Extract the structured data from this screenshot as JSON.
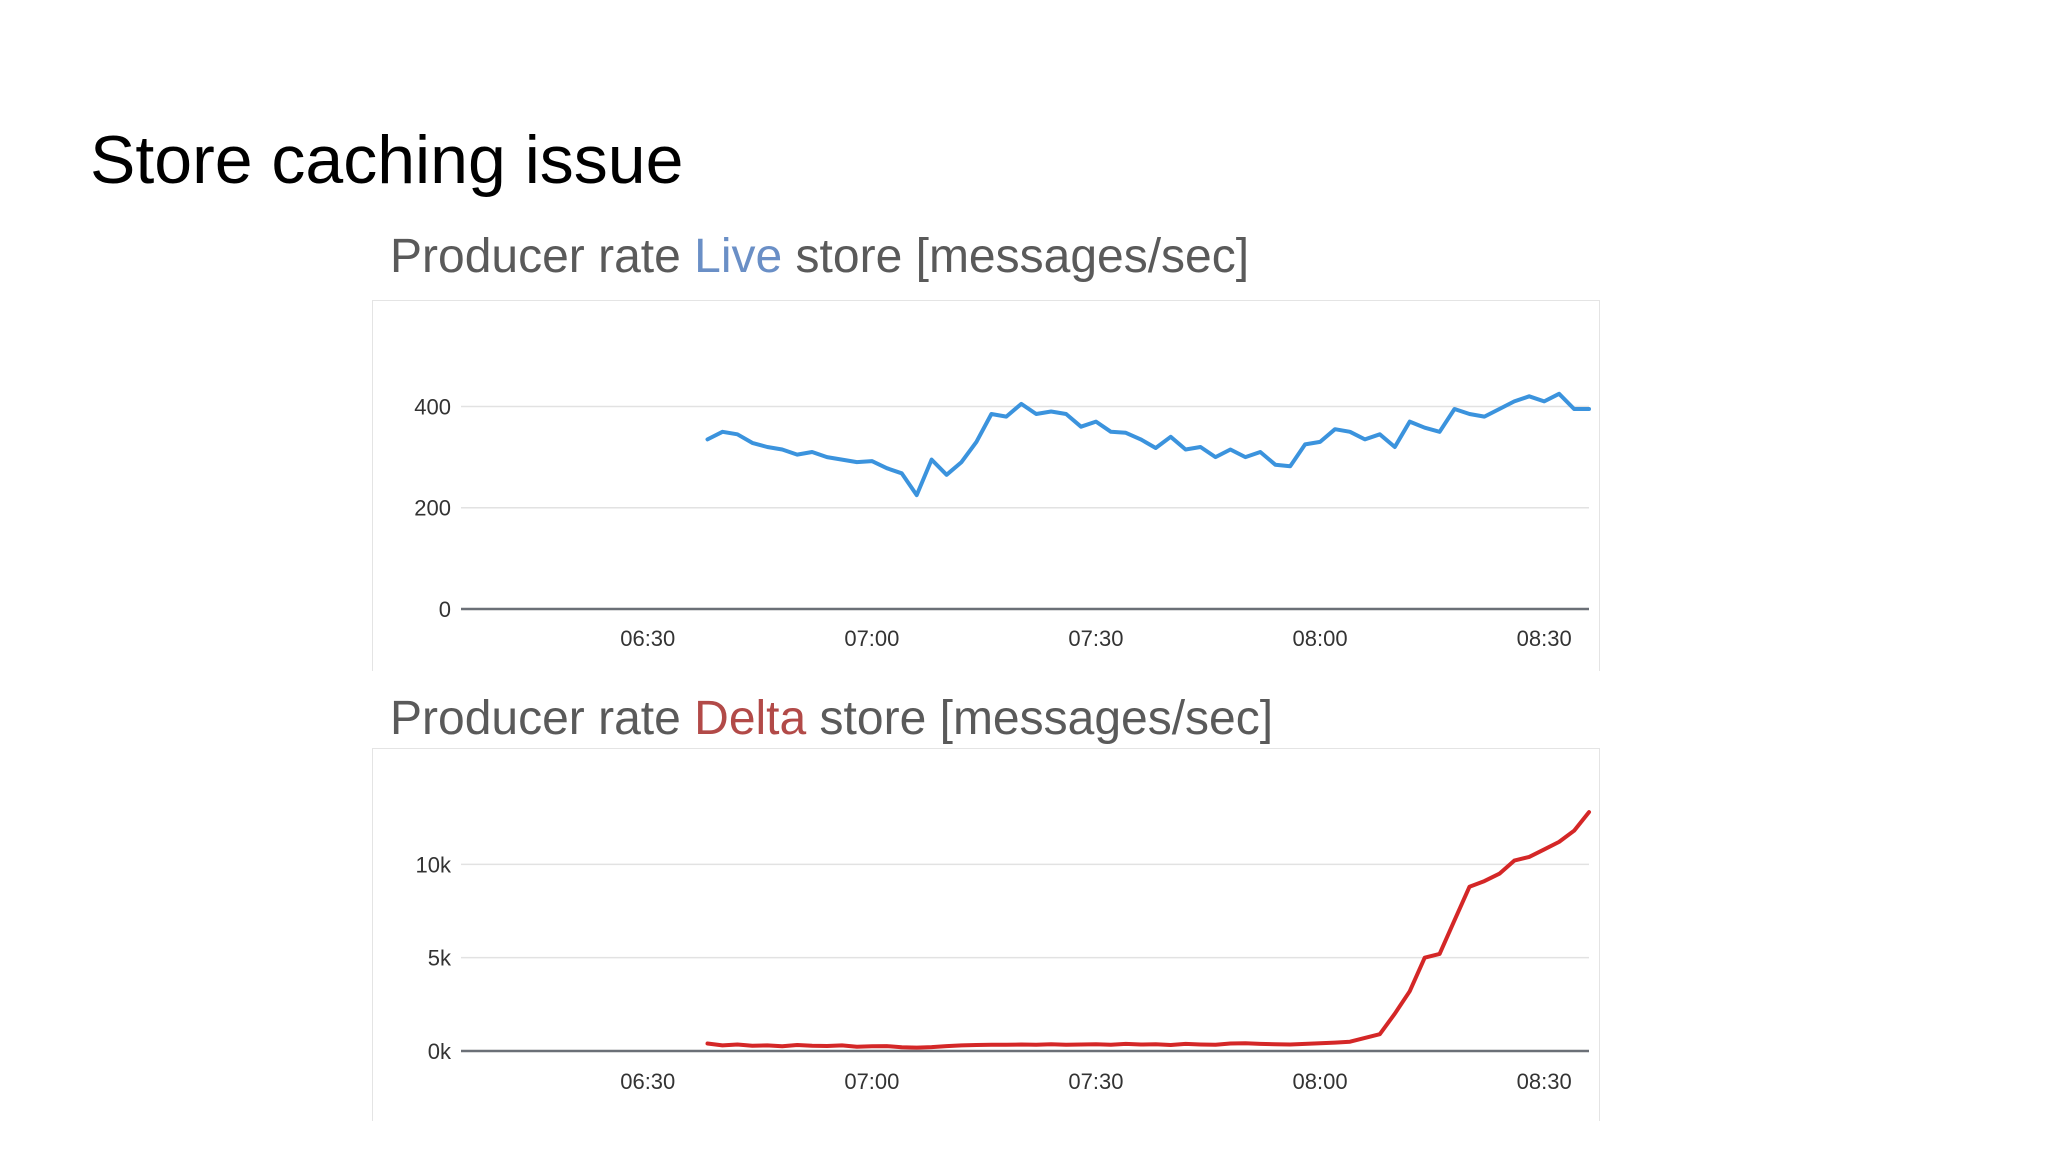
{
  "slide": {
    "title": "Store caching issue"
  },
  "headings": [
    {
      "prefix": "Producer rate ",
      "store": "Live",
      "suffix": " store [messages/sec]"
    },
    {
      "prefix": "Producer rate ",
      "store": "Delta",
      "suffix": " store [messages/sec]"
    }
  ],
  "colors": {
    "live_line": "#3b93dd",
    "delta_line": "#d42727",
    "live_word": "#6a8fc6",
    "delta_word": "#b24a48"
  },
  "chart_data": [
    {
      "type": "line",
      "title": "Producer rate Live store [messages/sec]",
      "xlabel": "",
      "ylabel": "",
      "x_ticks": [
        "06:30",
        "07:00",
        "07:30",
        "08:00",
        "08:30"
      ],
      "y_ticks": [
        "0",
        "200",
        "400"
      ],
      "y_tick_values": [
        0,
        200,
        400
      ],
      "xlim": [
        "06:05",
        "08:36"
      ],
      "ylim": [
        0,
        470
      ],
      "grid": true,
      "series": [
        {
          "color": "#3b93dd",
          "x": [
            "06:38",
            "06:40",
            "06:42",
            "06:44",
            "06:46",
            "06:48",
            "06:50",
            "06:52",
            "06:54",
            "06:56",
            "06:58",
            "07:00",
            "07:02",
            "07:04",
            "07:06",
            "07:08",
            "07:10",
            "07:12",
            "07:14",
            "07:16",
            "07:18",
            "07:20",
            "07:22",
            "07:24",
            "07:26",
            "07:28",
            "07:30",
            "07:32",
            "07:34",
            "07:36",
            "07:38",
            "07:40",
            "07:42",
            "07:44",
            "07:46",
            "07:48",
            "07:50",
            "07:52",
            "07:54",
            "07:56",
            "07:58",
            "08:00",
            "08:02",
            "08:04",
            "08:06",
            "08:08",
            "08:10",
            "08:12",
            "08:14",
            "08:16",
            "08:18",
            "08:20",
            "08:22",
            "08:24",
            "08:26",
            "08:28",
            "08:30",
            "08:32",
            "08:34",
            "08:36"
          ],
          "values": [
            335,
            350,
            345,
            328,
            320,
            315,
            305,
            310,
            300,
            295,
            290,
            292,
            278,
            268,
            225,
            295,
            265,
            290,
            330,
            385,
            380,
            405,
            385,
            390,
            385,
            360,
            370,
            350,
            348,
            335,
            318,
            340,
            315,
            320,
            300,
            315,
            300,
            310,
            285,
            282,
            325,
            330,
            355,
            350,
            335,
            345,
            320,
            370,
            358,
            350,
            395,
            385,
            380,
            395,
            410,
            420,
            410,
            425,
            395,
            395
          ]
        }
      ]
    },
    {
      "type": "line",
      "title": "Producer rate Delta store [messages/sec]",
      "xlabel": "",
      "ylabel": "",
      "x_ticks": [
        "06:30",
        "07:00",
        "07:30",
        "08:00",
        "08:30"
      ],
      "y_ticks": [
        "0k",
        "5k",
        "10k"
      ],
      "y_tick_values": [
        0,
        5000,
        10000
      ],
      "xlim": [
        "06:05",
        "08:36"
      ],
      "ylim": [
        0,
        13500
      ],
      "grid": true,
      "series": [
        {
          "color": "#d42727",
          "x": [
            "06:38",
            "06:40",
            "06:42",
            "06:44",
            "06:46",
            "06:48",
            "06:50",
            "06:52",
            "06:54",
            "06:56",
            "06:58",
            "07:00",
            "07:02",
            "07:04",
            "07:06",
            "07:08",
            "07:10",
            "07:12",
            "07:14",
            "07:16",
            "07:18",
            "07:20",
            "07:22",
            "07:24",
            "07:26",
            "07:28",
            "07:30",
            "07:32",
            "07:34",
            "07:36",
            "07:38",
            "07:40",
            "07:42",
            "07:44",
            "07:46",
            "07:48",
            "07:50",
            "07:52",
            "07:54",
            "07:56",
            "07:58",
            "08:00",
            "08:02",
            "08:04",
            "08:06",
            "08:08",
            "08:10",
            "08:12",
            "08:14",
            "08:16",
            "08:18",
            "08:20",
            "08:22",
            "08:24",
            "08:26",
            "08:28",
            "08:30",
            "08:32",
            "08:34",
            "08:36"
          ],
          "values": [
            400,
            300,
            350,
            280,
            300,
            250,
            320,
            280,
            270,
            300,
            230,
            250,
            260,
            200,
            180,
            210,
            260,
            300,
            320,
            340,
            330,
            350,
            340,
            360,
            330,
            350,
            360,
            340,
            380,
            350,
            360,
            320,
            380,
            350,
            330,
            400,
            420,
            380,
            360,
            350,
            380,
            420,
            450,
            500,
            700,
            900,
            2000,
            3200,
            5000,
            5200,
            7000,
            8800,
            9100,
            9500,
            10200,
            10400,
            10800,
            11200,
            11800,
            12800
          ]
        }
      ]
    }
  ]
}
